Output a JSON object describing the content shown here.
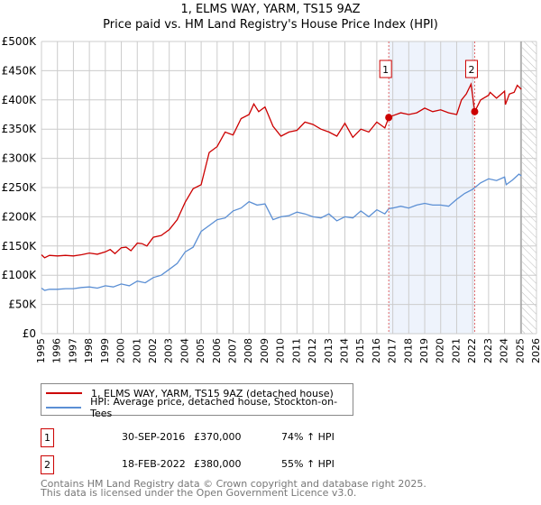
{
  "chart_data": {
    "type": "line",
    "title": "1, ELMS WAY, YARM, TS15 9AZ",
    "subtitle": "Price paid vs. HM Land Registry's House Price Index (HPI)",
    "xlim": [
      1995,
      2026
    ],
    "ylim": [
      0,
      500000
    ],
    "grid": true,
    "y_ticks": [
      0,
      50000,
      100000,
      150000,
      200000,
      250000,
      300000,
      350000,
      400000,
      450000,
      500000
    ],
    "y_tick_labels": [
      "£0",
      "£50K",
      "£100K",
      "£150K",
      "£200K",
      "£250K",
      "£300K",
      "£350K",
      "£400K",
      "£450K",
      "£500K"
    ],
    "x_ticks": [
      1995,
      1996,
      1997,
      1998,
      1999,
      2000,
      2001,
      2002,
      2003,
      2004,
      2005,
      2006,
      2007,
      2008,
      2009,
      2010,
      2011,
      2012,
      2013,
      2014,
      2015,
      2016,
      2017,
      2018,
      2019,
      2020,
      2021,
      2022,
      2023,
      2024,
      2025,
      2026
    ],
    "x_tick_labels": [
      "1995",
      "1996",
      "1997",
      "1998",
      "1999",
      "2000",
      "2001",
      "2002",
      "2003",
      "2004",
      "2005",
      "2006",
      "2007",
      "2008",
      "2009",
      "2010",
      "2011",
      "2012",
      "2013",
      "2014",
      "2015",
      "2016",
      "2017",
      "2018",
      "2019",
      "2020",
      "2021",
      "2022",
      "2023",
      "2024",
      "2025",
      "2026"
    ],
    "series": [
      {
        "name": "1, ELMS WAY, YARM, TS15 9AZ (detached house)",
        "color": "#cc0000",
        "x": [
          1995,
          1995.2,
          1995.5,
          1996,
          1996.5,
          1997,
          1997.5,
          1998,
          1998.5,
          1999,
          1999.3,
          1999.6,
          2000,
          2000.3,
          2000.6,
          2001,
          2001.3,
          2001.6,
          2002,
          2002.5,
          2003,
          2003.5,
          2004,
          2004.5,
          2005,
          2005.5,
          2006,
          2006.5,
          2007,
          2007.5,
          2008,
          2008.3,
          2008.6,
          2009,
          2009.5,
          2010,
          2010.5,
          2011,
          2011.5,
          2012,
          2012.5,
          2013,
          2013.5,
          2014,
          2014.5,
          2015,
          2015.5,
          2016,
          2016.5,
          2016.75,
          2017,
          2017.5,
          2018,
          2018.5,
          2019,
          2019.5,
          2020,
          2020.5,
          2021,
          2021.3,
          2021.6,
          2021.9,
          2022.13,
          2022.5,
          2023,
          2023.1,
          2023.5,
          2024,
          2024.05,
          2024.3,
          2024.6,
          2024.8,
          2025.05
        ],
        "values": [
          135000,
          130000,
          134000,
          133000,
          134000,
          133000,
          135000,
          138000,
          136000,
          140000,
          144000,
          137000,
          147000,
          148000,
          142000,
          155000,
          154000,
          150000,
          165000,
          168000,
          178000,
          195000,
          225000,
          248000,
          255000,
          310000,
          320000,
          345000,
          340000,
          368000,
          375000,
          393000,
          380000,
          388000,
          355000,
          338000,
          345000,
          348000,
          362000,
          358000,
          350000,
          345000,
          338000,
          360000,
          336000,
          350000,
          345000,
          362000,
          352000,
          370000,
          373000,
          378000,
          375000,
          378000,
          386000,
          380000,
          383000,
          378000,
          375000,
          400000,
          410000,
          427000,
          380000,
          400000,
          408000,
          413000,
          403000,
          415000,
          392000,
          410000,
          413000,
          425000,
          418000
        ]
      },
      {
        "name": "HPI: Average price, detached house, Stockton-on-Tees",
        "color": "#5b8fd4",
        "x": [
          1995,
          1995.2,
          1995.5,
          1996,
          1996.5,
          1997,
          1997.5,
          1998,
          1998.5,
          1999,
          1999.5,
          2000,
          2000.5,
          2001,
          2001.5,
          2002,
          2002.5,
          2003,
          2003.5,
          2004,
          2004.5,
          2005,
          2005.5,
          2006,
          2006.5,
          2007,
          2007.5,
          2008,
          2008.5,
          2009,
          2009.5,
          2010,
          2010.5,
          2011,
          2011.5,
          2012,
          2012.5,
          2013,
          2013.5,
          2014,
          2014.5,
          2015,
          2015.5,
          2016,
          2016.5,
          2016.75,
          2017,
          2017.5,
          2018,
          2018.5,
          2019,
          2019.5,
          2020,
          2020.5,
          2021,
          2021.5,
          2022,
          2022.5,
          2023,
          2023.5,
          2024,
          2024.1,
          2024.5,
          2024.9,
          2025.05
        ],
        "values": [
          78000,
          74000,
          76000,
          76000,
          77000,
          77000,
          79000,
          80000,
          78000,
          82000,
          80000,
          85000,
          82000,
          90000,
          87000,
          96000,
          100000,
          110000,
          120000,
          140000,
          148000,
          175000,
          185000,
          195000,
          198000,
          210000,
          215000,
          226000,
          220000,
          222000,
          195000,
          200000,
          202000,
          208000,
          205000,
          200000,
          198000,
          205000,
          193000,
          200000,
          198000,
          210000,
          200000,
          212000,
          205000,
          214000,
          215000,
          218000,
          215000,
          220000,
          223000,
          220000,
          220000,
          218000,
          230000,
          240000,
          247000,
          258000,
          265000,
          262000,
          268000,
          255000,
          263000,
          273000,
          270000
        ]
      }
    ],
    "sales": [
      {
        "label": "1",
        "x": 2016.75,
        "value": 370000,
        "date": "30-SEP-2016",
        "price": "£370,000",
        "hpi": "74% ↑ HPI"
      },
      {
        "label": "2",
        "x": 2022.13,
        "value": 380000,
        "date": "18-FEB-2022",
        "price": "£380,000",
        "hpi": "55% ↑ HPI"
      }
    ],
    "shaded_range": [
      2016.75,
      2022.13
    ],
    "hatched_from": 2025.1,
    "legend_placement": "bottom"
  },
  "footer": {
    "line1": "Contains HM Land Registry data © Crown copyright and database right 2025.",
    "line2": "This data is licensed under the Open Government Licence v3.0."
  }
}
